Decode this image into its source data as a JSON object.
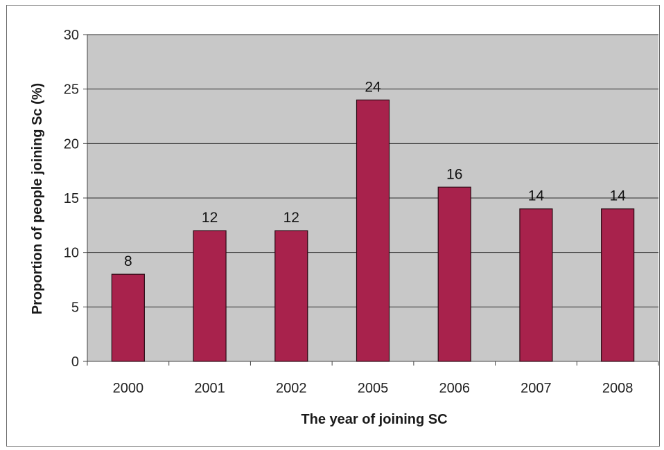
{
  "chart_data": {
    "type": "bar",
    "title": "",
    "xlabel": "The year of joining SC",
    "ylabel": "Proportion of people joining Sc (%)",
    "categories": [
      "2000",
      "2001",
      "2002",
      "2005",
      "2006",
      "2007",
      "2008"
    ],
    "values": [
      8,
      12,
      12,
      24,
      16,
      14,
      14
    ],
    "data_labels": [
      "8",
      "12",
      "12",
      "24",
      "16",
      "14",
      "14"
    ],
    "y_ticks": [
      "0",
      "5",
      "10",
      "15",
      "20",
      "25",
      "30"
    ],
    "ylim": [
      0,
      30
    ],
    "grid": true,
    "legend": "none",
    "colors": {
      "bar": "#a8224c",
      "bar_edge": "#2a0a14",
      "plot_bg": "#c8c8c8",
      "gridline": "#2b2b2b"
    }
  }
}
